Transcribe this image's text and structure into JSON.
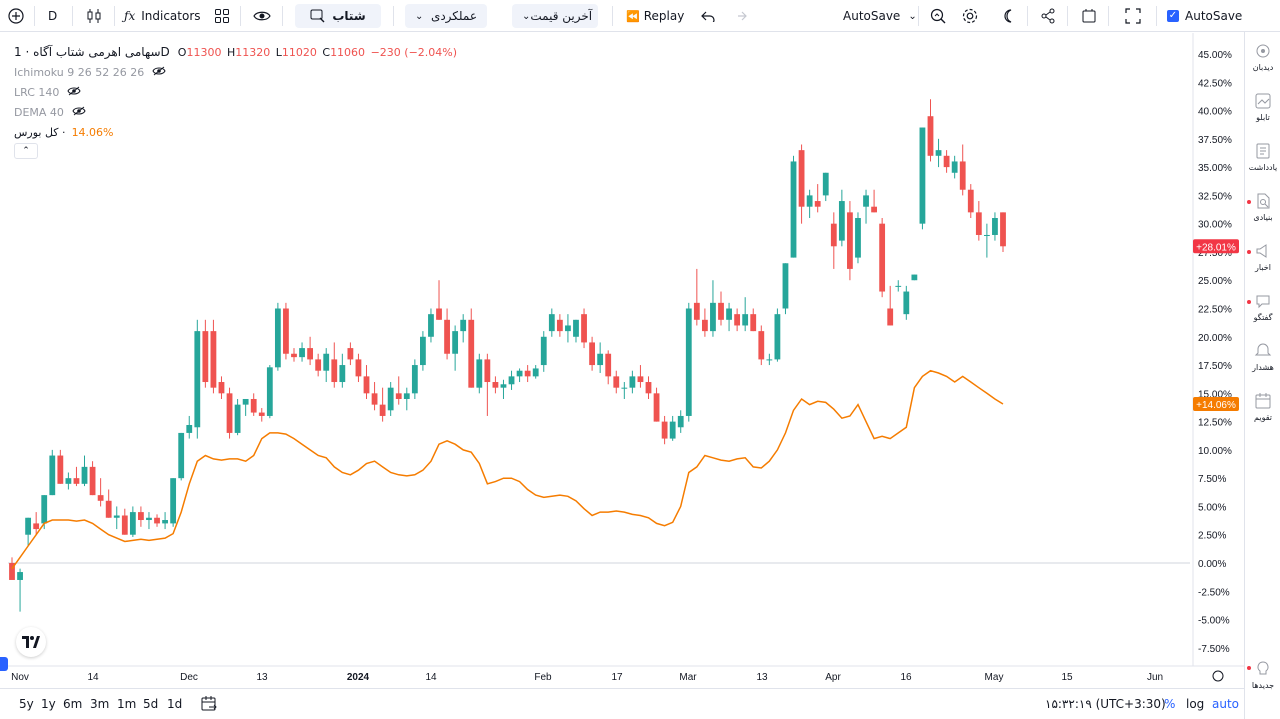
{
  "toolbar": {
    "interval": "D",
    "indicators_label": "Indicators",
    "symbol_search": "شتاب",
    "layout_select": "عملکردی",
    "price_type_select": "آخرین قیمت",
    "replay_label": "Replay",
    "autosave_label": "AutoSave",
    "autosave_check_label": "AutoSave",
    "autosave_checked": true
  },
  "legend": {
    "symbol_name": "سهامی اهرمی شتاب آگاه · 1D",
    "open_label": "O",
    "open": "11300",
    "high_label": "H",
    "high": "11320",
    "low_label": "L",
    "low": "11020",
    "close_label": "C",
    "close": "11060",
    "change": "−230 (−2.04%)",
    "indicators": [
      {
        "name": "Ichimoku 9 26 52 26 26"
      },
      {
        "name": "LRC 140"
      },
      {
        "name": "DEMA 40"
      }
    ],
    "compare_name": "کل بورس ·",
    "compare_value": "14.06%"
  },
  "right_sidebar": {
    "items": [
      {
        "label": "دیدبان",
        "icon": "watchlist-icon",
        "dot": false
      },
      {
        "label": "تابلو",
        "icon": "board-icon",
        "dot": false
      },
      {
        "label": "یادداشت",
        "icon": "note-icon",
        "dot": false
      },
      {
        "label": "بنیادی",
        "icon": "fundamental-icon",
        "dot": true
      },
      {
        "label": "اخبار",
        "icon": "news-icon",
        "dot": true
      },
      {
        "label": "گفتگو",
        "icon": "chat-icon",
        "dot": true
      },
      {
        "label": "هشدار",
        "icon": "alert-icon",
        "dot": false
      },
      {
        "label": "تقویم",
        "icon": "calendar-icon",
        "dot": false
      }
    ],
    "bottom_label": "جدیدها"
  },
  "bottombar": {
    "ranges": [
      "5y",
      "1y",
      "6m",
      "3m",
      "1m",
      "5d",
      "1d"
    ],
    "clock": "۱۵:۳۲:۱۹ (UTC+3:30)",
    "percent": "%",
    "log": "log",
    "auto": "auto"
  },
  "colors": {
    "up": "#26a69a",
    "down": "#ef5350",
    "compare_line": "#f57c00",
    "last_price_badge": "#f23645",
    "compare_badge": "#f57c00",
    "accent": "#2962ff"
  },
  "chart_data": {
    "type": "candlestick",
    "y_scale": "percent",
    "ylim": [
      -8.5,
      45.5
    ],
    "y_ticks": [
      "45.00%",
      "42.50%",
      "40.00%",
      "37.50%",
      "35.00%",
      "32.50%",
      "30.00%",
      "27.50%",
      "25.00%",
      "22.50%",
      "20.00%",
      "17.50%",
      "15.00%",
      "12.50%",
      "10.00%",
      "7.50%",
      "5.00%",
      "2.50%",
      "0.00%",
      "-2.50%",
      "-5.00%",
      "-7.50%"
    ],
    "x_ticks": [
      "Nov",
      "14",
      "Dec",
      "13",
      "2024",
      "14",
      "Feb",
      "17",
      "Mar",
      "13",
      "Apr",
      "16",
      "May",
      "15",
      "Jun"
    ],
    "last_price_label": "+28.01%",
    "compare_last_label": "+14.06%",
    "candles": [
      {
        "o": 0.0,
        "h": 0.5,
        "l": -1.0,
        "c": -1.5
      },
      {
        "o": -1.5,
        "h": -0.5,
        "l": -4.3,
        "c": -0.8
      },
      {
        "o": 2.5,
        "h": 4.0,
        "l": 1.5,
        "c": 4.0
      },
      {
        "o": 3.5,
        "h": 4.5,
        "l": 2.5,
        "c": 3.0
      },
      {
        "o": 3.5,
        "h": 6.0,
        "l": 3.0,
        "c": 6.0
      },
      {
        "o": 6.0,
        "h": 10.0,
        "l": 6.0,
        "c": 9.5
      },
      {
        "o": 9.5,
        "h": 10.0,
        "l": 7.0,
        "c": 7.0
      },
      {
        "o": 7.0,
        "h": 8.0,
        "l": 6.5,
        "c": 7.5
      },
      {
        "o": 7.5,
        "h": 8.5,
        "l": 6.8,
        "c": 7.0
      },
      {
        "o": 7.0,
        "h": 9.5,
        "l": 6.8,
        "c": 8.5
      },
      {
        "o": 8.5,
        "h": 9.0,
        "l": 6.0,
        "c": 6.0
      },
      {
        "o": 6.0,
        "h": 7.5,
        "l": 5.0,
        "c": 5.5
      },
      {
        "o": 5.5,
        "h": 6.5,
        "l": 4.0,
        "c": 4.0
      },
      {
        "o": 4.0,
        "h": 5.0,
        "l": 3.0,
        "c": 4.2
      },
      {
        "o": 4.2,
        "h": 4.8,
        "l": 2.5,
        "c": 2.5
      },
      {
        "o": 2.5,
        "h": 5.0,
        "l": 2.3,
        "c": 4.5
      },
      {
        "o": 4.5,
        "h": 5.0,
        "l": 3.2,
        "c": 3.8
      },
      {
        "o": 3.8,
        "h": 4.5,
        "l": 3.0,
        "c": 4.0
      },
      {
        "o": 4.0,
        "h": 4.3,
        "l": 3.2,
        "c": 3.5
      },
      {
        "o": 3.5,
        "h": 4.5,
        "l": 3.0,
        "c": 3.8
      },
      {
        "o": 3.5,
        "h": 7.5,
        "l": 3.2,
        "c": 7.5
      },
      {
        "o": 7.5,
        "h": 11.5,
        "l": 7.3,
        "c": 11.5
      },
      {
        "o": 11.5,
        "h": 13.0,
        "l": 11.0,
        "c": 12.2
      },
      {
        "o": 12.0,
        "h": 21.5,
        "l": 11.0,
        "c": 20.5
      },
      {
        "o": 20.5,
        "h": 21.5,
        "l": 15.5,
        "c": 16.0
      },
      {
        "o": 20.5,
        "h": 21.5,
        "l": 15.0,
        "c": 15.5
      },
      {
        "o": 16.0,
        "h": 16.5,
        "l": 14.5,
        "c": 15.0
      },
      {
        "o": 15.0,
        "h": 15.5,
        "l": 11.0,
        "c": 11.5
      },
      {
        "o": 11.5,
        "h": 14.5,
        "l": 11.3,
        "c": 14.0
      },
      {
        "o": 14.0,
        "h": 14.5,
        "l": 13.0,
        "c": 14.5
      },
      {
        "o": 14.5,
        "h": 15.0,
        "l": 13.0,
        "c": 13.3
      },
      {
        "o": 13.3,
        "h": 13.7,
        "l": 12.5,
        "c": 13.0
      },
      {
        "o": 13.0,
        "h": 17.5,
        "l": 12.8,
        "c": 17.3
      },
      {
        "o": 17.3,
        "h": 23.0,
        "l": 17.0,
        "c": 22.5
      },
      {
        "o": 22.5,
        "h": 23.0,
        "l": 18.0,
        "c": 18.5
      },
      {
        "o": 18.5,
        "h": 19.0,
        "l": 17.8,
        "c": 18.2
      },
      {
        "o": 18.2,
        "h": 19.5,
        "l": 17.8,
        "c": 19.0
      },
      {
        "o": 19.0,
        "h": 20.0,
        "l": 17.5,
        "c": 18.0
      },
      {
        "o": 18.0,
        "h": 18.5,
        "l": 16.5,
        "c": 17.0
      },
      {
        "o": 17.0,
        "h": 19.0,
        "l": 16.0,
        "c": 18.5
      },
      {
        "o": 18.0,
        "h": 19.5,
        "l": 15.5,
        "c": 16.0
      },
      {
        "o": 16.0,
        "h": 18.5,
        "l": 15.5,
        "c": 17.5
      },
      {
        "o": 19.0,
        "h": 19.5,
        "l": 17.5,
        "c": 18.0
      },
      {
        "o": 18.0,
        "h": 18.5,
        "l": 16.0,
        "c": 16.5
      },
      {
        "o": 16.5,
        "h": 17.5,
        "l": 14.5,
        "c": 15.0
      },
      {
        "o": 15.0,
        "h": 16.0,
        "l": 13.5,
        "c": 14.0
      },
      {
        "o": 14.0,
        "h": 15.5,
        "l": 12.5,
        "c": 13.0
      },
      {
        "o": 13.5,
        "h": 16.0,
        "l": 13.0,
        "c": 15.5
      },
      {
        "o": 15.0,
        "h": 16.5,
        "l": 14.0,
        "c": 14.5
      },
      {
        "o": 14.5,
        "h": 15.5,
        "l": 13.5,
        "c": 15.0
      },
      {
        "o": 15.0,
        "h": 18.0,
        "l": 14.5,
        "c": 17.5
      },
      {
        "o": 17.5,
        "h": 20.5,
        "l": 17.0,
        "c": 20.0
      },
      {
        "o": 20.0,
        "h": 22.5,
        "l": 19.5,
        "c": 22.0
      },
      {
        "o": 22.5,
        "h": 25.0,
        "l": 21.5,
        "c": 21.5
      },
      {
        "o": 21.5,
        "h": 22.5,
        "l": 18.0,
        "c": 18.5
      },
      {
        "o": 18.5,
        "h": 21.0,
        "l": 17.0,
        "c": 20.5
      },
      {
        "o": 20.5,
        "h": 22.0,
        "l": 19.5,
        "c": 21.5
      },
      {
        "o": 21.5,
        "h": 22.5,
        "l": 15.5,
        "c": 15.5
      },
      {
        "o": 15.5,
        "h": 18.5,
        "l": 15.0,
        "c": 18.0
      },
      {
        "o": 18.0,
        "h": 18.5,
        "l": 13.0,
        "c": 16.0
      },
      {
        "o": 16.0,
        "h": 16.5,
        "l": 15.0,
        "c": 15.5
      },
      {
        "o": 15.5,
        "h": 16.2,
        "l": 14.5,
        "c": 15.8
      },
      {
        "o": 15.8,
        "h": 17.0,
        "l": 15.3,
        "c": 16.5
      },
      {
        "o": 16.5,
        "h": 17.2,
        "l": 16.0,
        "c": 17.0
      },
      {
        "o": 17.0,
        "h": 17.5,
        "l": 16.0,
        "c": 16.5
      },
      {
        "o": 16.5,
        "h": 17.5,
        "l": 16.3,
        "c": 17.2
      },
      {
        "o": 17.5,
        "h": 20.5,
        "l": 16.9,
        "c": 20.0
      },
      {
        "o": 20.5,
        "h": 22.5,
        "l": 20.0,
        "c": 22.0
      },
      {
        "o": 21.5,
        "h": 22.0,
        "l": 20.0,
        "c": 20.5
      },
      {
        "o": 20.5,
        "h": 22.0,
        "l": 19.5,
        "c": 21.0
      },
      {
        "o": 20.0,
        "h": 21.5,
        "l": 19.5,
        "c": 21.5
      },
      {
        "o": 22.0,
        "h": 22.5,
        "l": 19.0,
        "c": 19.5
      },
      {
        "o": 19.5,
        "h": 20.0,
        "l": 17.0,
        "c": 17.5
      },
      {
        "o": 17.5,
        "h": 19.5,
        "l": 16.8,
        "c": 18.5
      },
      {
        "o": 18.5,
        "h": 18.8,
        "l": 15.8,
        "c": 16.5
      },
      {
        "o": 16.5,
        "h": 17.0,
        "l": 15.0,
        "c": 15.5
      },
      {
        "o": 15.5,
        "h": 16.0,
        "l": 14.5,
        "c": 15.5
      },
      {
        "o": 15.5,
        "h": 17.0,
        "l": 15.0,
        "c": 16.5
      },
      {
        "o": 16.5,
        "h": 17.5,
        "l": 15.5,
        "c": 16.0
      },
      {
        "o": 16.0,
        "h": 16.5,
        "l": 14.5,
        "c": 15.0
      },
      {
        "o": 15.0,
        "h": 15.5,
        "l": 12.5,
        "c": 12.5
      },
      {
        "o": 12.5,
        "h": 13.0,
        "l": 10.5,
        "c": 11.0
      },
      {
        "o": 11.0,
        "h": 13.0,
        "l": 10.8,
        "c": 12.5
      },
      {
        "o": 12.0,
        "h": 13.5,
        "l": 11.5,
        "c": 13.0
      },
      {
        "o": 13.0,
        "h": 23.0,
        "l": 12.5,
        "c": 22.5
      },
      {
        "o": 23.0,
        "h": 26.0,
        "l": 21.0,
        "c": 21.5
      },
      {
        "o": 21.5,
        "h": 22.5,
        "l": 20.0,
        "c": 20.5
      },
      {
        "o": 20.5,
        "h": 25.0,
        "l": 20.0,
        "c": 23.0
      },
      {
        "o": 23.0,
        "h": 24.0,
        "l": 21.0,
        "c": 21.5
      },
      {
        "o": 21.5,
        "h": 23.0,
        "l": 20.5,
        "c": 22.5
      },
      {
        "o": 22.0,
        "h": 22.5,
        "l": 20.5,
        "c": 21.0
      },
      {
        "o": 21.0,
        "h": 23.5,
        "l": 20.5,
        "c": 22.0
      },
      {
        "o": 22.0,
        "h": 22.5,
        "l": 20.5,
        "c": 20.5
      },
      {
        "o": 20.5,
        "h": 21.0,
        "l": 17.5,
        "c": 18.0
      },
      {
        "o": 18.0,
        "h": 18.5,
        "l": 17.5,
        "c": 18.0
      },
      {
        "o": 18.0,
        "h": 22.5,
        "l": 17.8,
        "c": 22.0
      },
      {
        "o": 22.5,
        "h": 26.5,
        "l": 22.0,
        "c": 26.5
      },
      {
        "o": 27.0,
        "h": 36.0,
        "l": 27.0,
        "c": 35.5
      },
      {
        "o": 36.5,
        "h": 37.0,
        "l": 30.0,
        "c": 31.5
      },
      {
        "o": 31.5,
        "h": 33.0,
        "l": 30.5,
        "c": 32.5
      },
      {
        "o": 32.0,
        "h": 33.5,
        "l": 31.0,
        "c": 31.5
      },
      {
        "o": 32.5,
        "h": 34.5,
        "l": 32.0,
        "c": 34.5
      },
      {
        "o": 30.0,
        "h": 31.0,
        "l": 26.0,
        "c": 28.0
      },
      {
        "o": 28.5,
        "h": 33.0,
        "l": 28.0,
        "c": 32.0
      },
      {
        "o": 31.0,
        "h": 32.0,
        "l": 25.0,
        "c": 26.0
      },
      {
        "o": 27.0,
        "h": 31.0,
        "l": 26.5,
        "c": 30.5
      },
      {
        "o": 31.5,
        "h": 33.0,
        "l": 30.0,
        "c": 32.5
      },
      {
        "o": 31.5,
        "h": 33.0,
        "l": 31.0,
        "c": 31.0
      },
      {
        "o": 30.0,
        "h": 30.5,
        "l": 23.5,
        "c": 24.0
      },
      {
        "o": 22.5,
        "h": 24.5,
        "l": 21.0,
        "c": 21.0
      },
      {
        "o": 24.5,
        "h": 25.0,
        "l": 24.0,
        "c": 24.5
      },
      {
        "o": 22.0,
        "h": 24.5,
        "l": 21.5,
        "c": 24.0
      },
      {
        "o": 25.0,
        "h": 25.5,
        "l": 25.0,
        "c": 25.5
      },
      {
        "o": 30.0,
        "h": 38.5,
        "l": 29.5,
        "c": 38.5
      },
      {
        "o": 39.5,
        "h": 41.0,
        "l": 35.5,
        "c": 36.0
      },
      {
        "o": 36.0,
        "h": 37.5,
        "l": 35.0,
        "c": 36.5
      },
      {
        "o": 36.0,
        "h": 36.5,
        "l": 34.5,
        "c": 35.0
      },
      {
        "o": 34.5,
        "h": 36.0,
        "l": 34.0,
        "c": 35.5
      },
      {
        "o": 35.5,
        "h": 37.0,
        "l": 32.5,
        "c": 33.0
      },
      {
        "o": 33.0,
        "h": 33.5,
        "l": 30.5,
        "c": 31.0
      },
      {
        "o": 31.0,
        "h": 32.0,
        "l": 28.5,
        "c": 29.0
      },
      {
        "o": 29.0,
        "h": 30.0,
        "l": 27.0,
        "c": 29.0
      },
      {
        "o": 29.0,
        "h": 31.0,
        "l": 28.5,
        "c": 30.5
      },
      {
        "o": 31.0,
        "h": 31.0,
        "l": 27.5,
        "c": 28.0
      }
    ],
    "compare_series": [
      -0.5,
      0.5,
      1.5,
      2.5,
      3.5,
      3.8,
      3.8,
      3.8,
      3.7,
      3.8,
      3.5,
      3.0,
      2.5,
      2.2,
      1.9,
      2.0,
      2.1,
      2.0,
      2.1,
      2.2,
      2.6,
      4.5,
      7.0,
      9.0,
      9.5,
      9.2,
      9.1,
      9.2,
      9.2,
      9.0,
      9.5,
      11.0,
      11.5,
      11.5,
      11.4,
      11.0,
      10.5,
      10.0,
      9.5,
      9.3,
      8.5,
      8.0,
      7.8,
      8.2,
      8.8,
      9.0,
      8.5,
      8.0,
      7.8,
      7.7,
      7.8,
      8.2,
      9.0,
      10.5,
      10.8,
      10.5,
      10.0,
      9.8,
      8.8,
      7.0,
      7.2,
      7.5,
      7.5,
      7.2,
      6.5,
      6.0,
      5.8,
      5.9,
      6.0,
      5.9,
      5.5,
      4.8,
      4.2,
      4.5,
      4.5,
      4.6,
      4.5,
      4.3,
      4.2,
      4.0,
      3.5,
      3.3,
      3.6,
      5.0,
      8.0,
      8.5,
      9.5,
      9.3,
      9.1,
      9.0,
      9.2,
      9.3,
      8.5,
      8.4,
      9.0,
      10.0,
      11.5,
      13.5,
      14.5,
      14.0,
      14.3,
      14.2,
      13.6,
      12.8,
      13.0,
      14.0,
      12.5,
      11.0,
      11.2,
      11.0,
      11.5,
      12.0,
      15.5,
      16.5,
      17.0,
      16.8,
      16.5,
      16.0,
      16.5,
      16.0,
      15.5,
      15.0,
      14.5,
      14.06
    ]
  }
}
